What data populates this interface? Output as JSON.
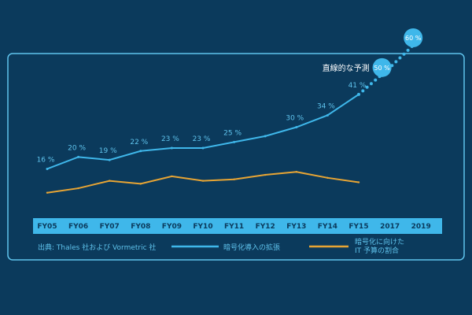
{
  "colors": {
    "background": "#0b3a5c",
    "frame": "#5fc3ec",
    "adoption_line": "#3fb7ea",
    "budget_line": "#e8a534",
    "axis_band": "#3fb7ea",
    "axis_text": "#0b3a5c",
    "label_text": "#5fc3ec",
    "annotation_text": "#ffffff"
  },
  "chart_data": {
    "type": "line",
    "categories": [
      "FY05",
      "FY06",
      "FY07",
      "FY08",
      "FY09",
      "FY10",
      "FY11",
      "FY12",
      "FY13",
      "FY14",
      "FY15",
      "2017",
      "2019"
    ],
    "series": [
      {
        "name": "暗号化導入の拡張",
        "values": [
          16,
          20,
          19,
          22,
          23,
          23,
          25,
          27,
          30,
          34,
          41,
          null,
          null
        ],
        "labels": [
          "16 %",
          "20 %",
          "19 %",
          "22 %",
          "23 %",
          "23 %",
          "25 %",
          "",
          "30 %",
          "34 %",
          "41 %",
          "",
          ""
        ]
      },
      {
        "name": "直線的な予測",
        "style": "dotted",
        "values": [
          null,
          null,
          null,
          null,
          null,
          null,
          null,
          null,
          null,
          null,
          41,
          50,
          60
        ],
        "labels": [
          "",
          "",
          "",
          "",
          "",
          "",
          "",
          "",
          "",
          "",
          "",
          "50 %",
          "60 %"
        ],
        "annotation": "直線的な予測"
      },
      {
        "name": "暗号化に向けた IT 予算の割合",
        "name_lines": [
          "暗号化に向けた",
          "IT 予算の割合"
        ],
        "values": [
          8,
          9.5,
          12,
          11,
          13.5,
          12,
          12.5,
          14,
          15,
          13,
          11.5,
          null,
          null
        ]
      }
    ],
    "ylim": [
      0,
      60
    ],
    "source": "出典: Thales 社および Vormetric 社",
    "legend_position": "bottom"
  }
}
